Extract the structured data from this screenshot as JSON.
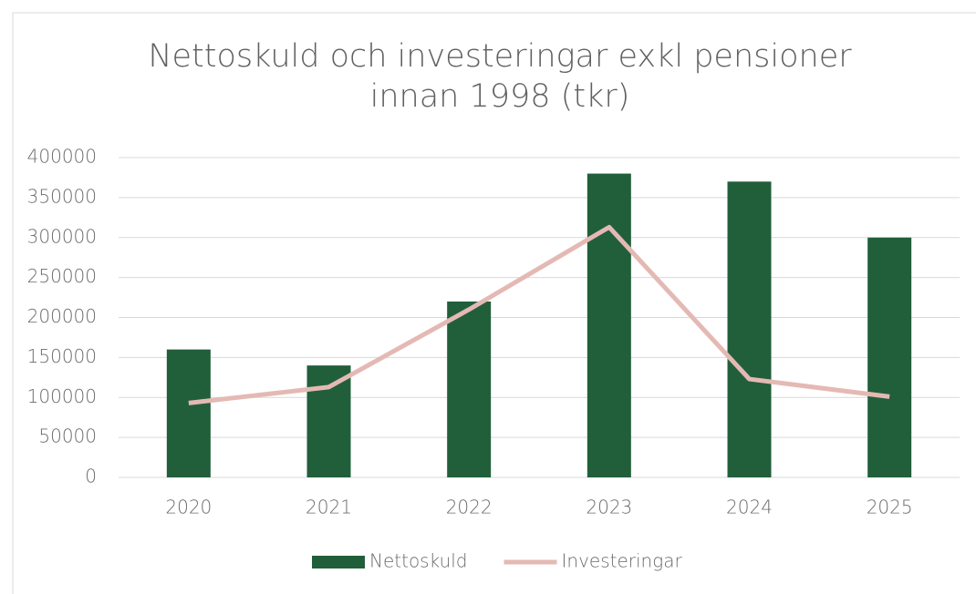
{
  "chart_data": {
    "type": "combo",
    "title": "Nettoskuld och investeringar exkl pensioner innan 1998 (tkr)",
    "categories": [
      "2020",
      "2021",
      "2022",
      "2023",
      "2024",
      "2025"
    ],
    "series": [
      {
        "name": "Nettoskuld",
        "type": "bar",
        "color": "#215f3a",
        "values": [
          160000,
          140000,
          220000,
          380000,
          370000,
          300000
        ]
      },
      {
        "name": "Investeringar",
        "type": "line",
        "color": "#e4b9b4",
        "values": [
          93000,
          113000,
          210000,
          313000,
          123000,
          101000
        ]
      }
    ],
    "ylim": [
      0,
      400000
    ],
    "yticks": [
      0,
      50000,
      100000,
      150000,
      200000,
      250000,
      300000,
      350000,
      400000
    ],
    "grid": true,
    "legend": "bottom"
  }
}
